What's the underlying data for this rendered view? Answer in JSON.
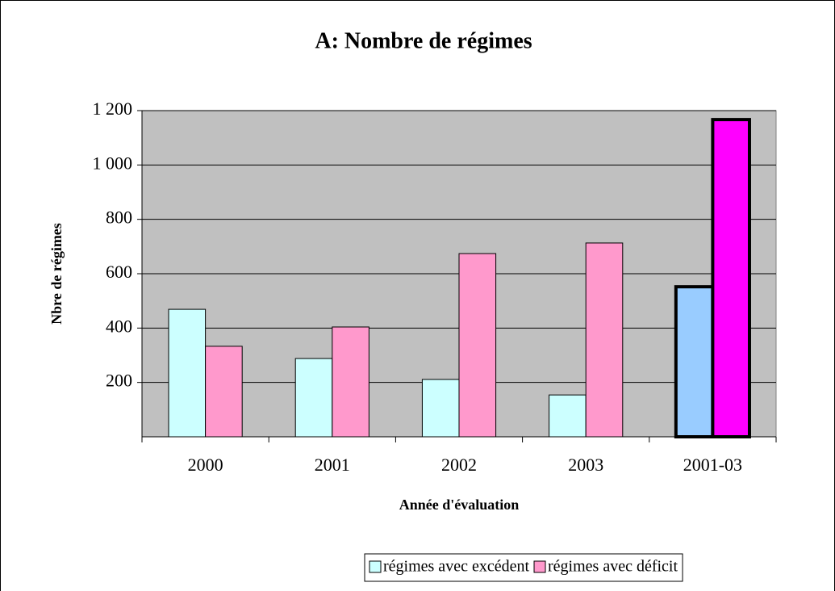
{
  "chart_data": {
    "type": "bar",
    "title": "A: Nombre de régimes",
    "x_label": "Année d'évaluation",
    "y_label": "Nbre de régimes",
    "categories": [
      "2000",
      "2001",
      "2002",
      "2003",
      "2001-03"
    ],
    "series": [
      {
        "name": "régimes avec excédent",
        "color": "#ccffff",
        "colors": [
          "#ccffff",
          "#ccffff",
          "#ccffff",
          "#ccffff",
          "#99ccff"
        ],
        "values": [
          469,
          288,
          211,
          154,
          552
        ]
      },
      {
        "name": "régimes avec déficit",
        "color": "#ff99cc",
        "colors": [
          "#ff99cc",
          "#ff99cc",
          "#ff99cc",
          "#ff99cc",
          "#ff00ff"
        ],
        "values": [
          333,
          404,
          674,
          713,
          1167
        ]
      }
    ],
    "emphasis": [
      false,
      false,
      false,
      false,
      true
    ],
    "ylim": [
      0,
      1200
    ],
    "yticks": [
      200,
      400,
      600,
      800,
      {
        "value": 1000,
        "label": "1 000"
      },
      {
        "value": 1200,
        "label": "1 200"
      }
    ],
    "grid": true,
    "plot_background": "#c0c0c0",
    "legend": "bottom"
  }
}
